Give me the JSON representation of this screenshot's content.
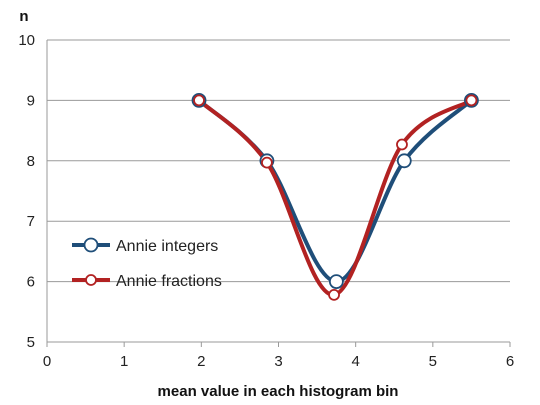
{
  "chart_data": {
    "type": "line",
    "title": "",
    "xlabel": "mean value in each histogram bin",
    "ylabel": "n",
    "xlim": [
      0,
      6
    ],
    "ylim": [
      5,
      10
    ],
    "x_ticks": [
      "0",
      "1",
      "2",
      "3",
      "4",
      "5",
      "6"
    ],
    "y_ticks": [
      "5",
      "6",
      "7",
      "8",
      "9",
      "10"
    ],
    "grid": "horizontal",
    "legend_position": "lower-left",
    "smoothed": true,
    "series": [
      {
        "name": "Annie integers",
        "color": "#1f4e79",
        "x": [
          1.97,
          2.85,
          3.75,
          4.63,
          5.5
        ],
        "y": [
          9,
          8,
          6,
          8,
          9
        ]
      },
      {
        "name": "Annie fractions",
        "color": "#b22222",
        "x": [
          1.97,
          2.85,
          3.72,
          4.6,
          5.5
        ],
        "y": [
          9,
          7.97,
          5.78,
          8.27,
          9
        ]
      }
    ]
  }
}
